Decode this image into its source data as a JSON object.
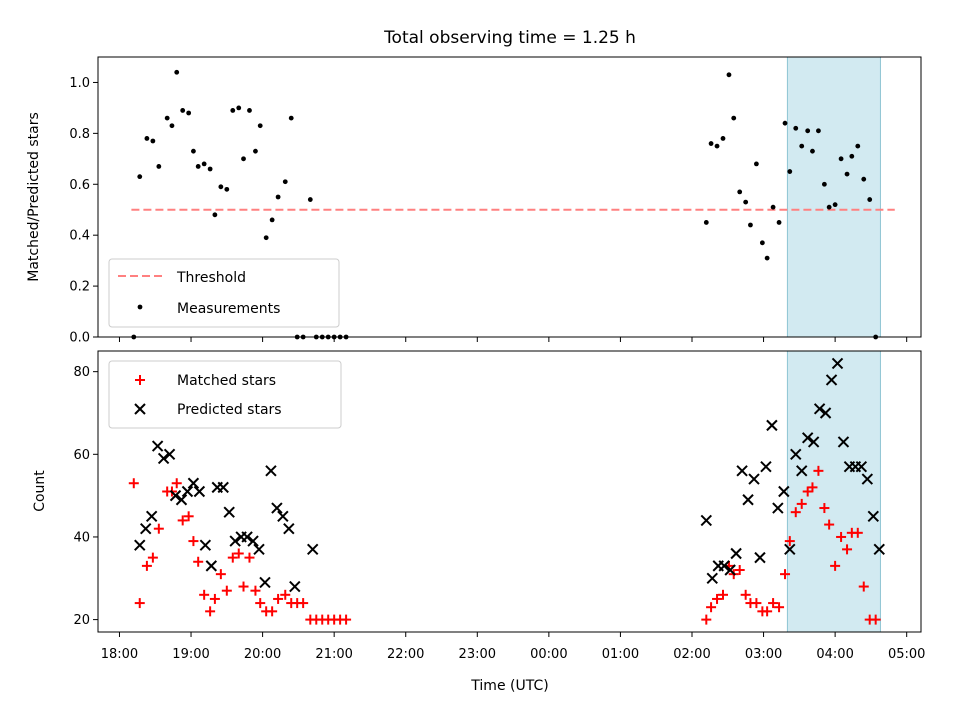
{
  "chart_data": [
    {
      "type": "scatter",
      "title": "Total observing time = 1.25 h",
      "xlabel": "",
      "ylabel": "Matched/Predicted stars",
      "ylim": [
        0,
        1.1
      ],
      "yticks": [
        "0.0",
        "0.2",
        "0.4",
        "0.6",
        "0.8",
        "1.0"
      ],
      "highlight_span_utc": [
        "03:20",
        "04:38"
      ],
      "highlight_color": "#add8e6",
      "legend_position": "lower left",
      "threshold": {
        "name": "Threshold",
        "value": 0.5,
        "x_range_utc": [
          "18:10",
          "04:50"
        ],
        "color": "#ff8080",
        "style": "dashed"
      },
      "series": [
        {
          "name": "Measurements",
          "marker": "dot",
          "color": "#000000",
          "points": [
            [
              "18:12",
              0.0
            ],
            [
              "18:17",
              0.63
            ],
            [
              "18:23",
              0.78
            ],
            [
              "18:28",
              0.77
            ],
            [
              "18:33",
              0.67
            ],
            [
              "18:40",
              0.86
            ],
            [
              "18:44",
              0.83
            ],
            [
              "18:48",
              1.04
            ],
            [
              "18:53",
              0.89
            ],
            [
              "18:58",
              0.88
            ],
            [
              "19:02",
              0.73
            ],
            [
              "19:06",
              0.67
            ],
            [
              "19:11",
              0.68
            ],
            [
              "19:16",
              0.66
            ],
            [
              "19:20",
              0.48
            ],
            [
              "19:25",
              0.59
            ],
            [
              "19:30",
              0.58
            ],
            [
              "19:35",
              0.89
            ],
            [
              "19:40",
              0.9
            ],
            [
              "19:44",
              0.7
            ],
            [
              "19:49",
              0.89
            ],
            [
              "19:54",
              0.73
            ],
            [
              "19:58",
              0.83
            ],
            [
              "20:03",
              0.39
            ],
            [
              "20:08",
              0.46
            ],
            [
              "20:13",
              0.55
            ],
            [
              "20:19",
              0.61
            ],
            [
              "20:24",
              0.86
            ],
            [
              "20:29",
              0.0
            ],
            [
              "20:34",
              0.0
            ],
            [
              "20:40",
              0.54
            ],
            [
              "20:45",
              0.0
            ],
            [
              "20:50",
              0.0
            ],
            [
              "20:55",
              0.0
            ],
            [
              "21:00",
              0.0
            ],
            [
              "21:05",
              0.0
            ],
            [
              "21:10",
              0.0
            ],
            [
              "02:12",
              0.45
            ],
            [
              "02:16",
              0.76
            ],
            [
              "02:21",
              0.75
            ],
            [
              "02:26",
              0.78
            ],
            [
              "02:31",
              1.03
            ],
            [
              "02:35",
              0.86
            ],
            [
              "02:40",
              0.57
            ],
            [
              "02:45",
              0.53
            ],
            [
              "02:49",
              0.44
            ],
            [
              "02:54",
              0.68
            ],
            [
              "02:59",
              0.37
            ],
            [
              "03:03",
              0.31
            ],
            [
              "03:08",
              0.51
            ],
            [
              "03:13",
              0.45
            ],
            [
              "03:18",
              0.84
            ],
            [
              "03:22",
              0.65
            ],
            [
              "03:27",
              0.82
            ],
            [
              "03:32",
              0.75
            ],
            [
              "03:37",
              0.81
            ],
            [
              "03:41",
              0.73
            ],
            [
              "03:46",
              0.81
            ],
            [
              "03:51",
              0.6
            ],
            [
              "03:55",
              0.51
            ],
            [
              "04:00",
              0.52
            ],
            [
              "04:05",
              0.7
            ],
            [
              "04:10",
              0.64
            ],
            [
              "04:14",
              0.71
            ],
            [
              "04:19",
              0.75
            ],
            [
              "04:24",
              0.62
            ],
            [
              "04:29",
              0.54
            ],
            [
              "04:34",
              0.0
            ]
          ]
        }
      ]
    },
    {
      "type": "scatter",
      "title": "",
      "xlabel": "Time (UTC)",
      "ylabel": "Count",
      "ylim": [
        17,
        85
      ],
      "yticks": [
        "20",
        "40",
        "60",
        "80"
      ],
      "xticks": [
        "18:00",
        "19:00",
        "20:00",
        "21:00",
        "22:00",
        "23:00",
        "00:00",
        "01:00",
        "02:00",
        "03:00",
        "04:00",
        "05:00"
      ],
      "xlim_utc": [
        "17:42",
        "05:12"
      ],
      "highlight_span_utc": [
        "03:20",
        "04:38"
      ],
      "highlight_color": "#add8e6",
      "legend_position": "upper left",
      "series": [
        {
          "name": "Matched stars",
          "marker": "plus",
          "color": "#ff0000",
          "points": [
            [
              "18:12",
              53
            ],
            [
              "18:17",
              24
            ],
            [
              "18:23",
              33
            ],
            [
              "18:28",
              35
            ],
            [
              "18:33",
              42
            ],
            [
              "18:40",
              51
            ],
            [
              "18:44",
              51
            ],
            [
              "18:48",
              53
            ],
            [
              "18:53",
              44
            ],
            [
              "18:58",
              45
            ],
            [
              "19:02",
              39
            ],
            [
              "19:06",
              34
            ],
            [
              "19:11",
              26
            ],
            [
              "19:16",
              22
            ],
            [
              "19:20",
              25
            ],
            [
              "19:25",
              31
            ],
            [
              "19:30",
              27
            ],
            [
              "19:35",
              35
            ],
            [
              "19:40",
              36
            ],
            [
              "19:44",
              28
            ],
            [
              "19:49",
              35
            ],
            [
              "19:54",
              27
            ],
            [
              "19:58",
              24
            ],
            [
              "20:03",
              22
            ],
            [
              "20:08",
              22
            ],
            [
              "20:13",
              25
            ],
            [
              "20:19",
              26
            ],
            [
              "20:24",
              24
            ],
            [
              "20:29",
              24
            ],
            [
              "20:34",
              24
            ],
            [
              "20:40",
              20
            ],
            [
              "20:45",
              20
            ],
            [
              "20:50",
              20
            ],
            [
              "20:55",
              20
            ],
            [
              "21:00",
              20
            ],
            [
              "21:05",
              20
            ],
            [
              "21:10",
              20
            ],
            [
              "02:12",
              20
            ],
            [
              "02:16",
              23
            ],
            [
              "02:21",
              25
            ],
            [
              "02:26",
              26
            ],
            [
              "02:31",
              33
            ],
            [
              "02:35",
              31
            ],
            [
              "02:40",
              32
            ],
            [
              "02:45",
              26
            ],
            [
              "02:49",
              24
            ],
            [
              "02:54",
              24
            ],
            [
              "02:59",
              22
            ],
            [
              "03:03",
              22
            ],
            [
              "03:08",
              24
            ],
            [
              "03:13",
              23
            ],
            [
              "03:18",
              31
            ],
            [
              "03:22",
              39
            ],
            [
              "03:27",
              46
            ],
            [
              "03:32",
              48
            ],
            [
              "03:37",
              51
            ],
            [
              "03:41",
              52
            ],
            [
              "03:46",
              56
            ],
            [
              "03:51",
              47
            ],
            [
              "03:55",
              43
            ],
            [
              "04:00",
              33
            ],
            [
              "04:05",
              40
            ],
            [
              "04:10",
              37
            ],
            [
              "04:14",
              41
            ],
            [
              "04:19",
              41
            ],
            [
              "04:24",
              28
            ],
            [
              "04:29",
              20
            ],
            [
              "04:34",
              20
            ]
          ]
        },
        {
          "name": "Predicted stars",
          "marker": "x",
          "color": "#000000",
          "points": [
            [
              "18:17",
              38
            ],
            [
              "18:22",
              42
            ],
            [
              "18:27",
              45
            ],
            [
              "18:32",
              62
            ],
            [
              "18:37",
              59
            ],
            [
              "18:42",
              60
            ],
            [
              "18:47",
              50
            ],
            [
              "18:52",
              49
            ],
            [
              "18:57",
              51
            ],
            [
              "19:02",
              53
            ],
            [
              "19:07",
              51
            ],
            [
              "19:12",
              38
            ],
            [
              "19:17",
              33
            ],
            [
              "19:22",
              52
            ],
            [
              "19:27",
              52
            ],
            [
              "19:32",
              46
            ],
            [
              "19:37",
              39
            ],
            [
              "19:42",
              40
            ],
            [
              "19:47",
              40
            ],
            [
              "19:52",
              39
            ],
            [
              "19:57",
              37
            ],
            [
              "20:02",
              29
            ],
            [
              "20:07",
              56
            ],
            [
              "20:12",
              47
            ],
            [
              "20:17",
              45
            ],
            [
              "20:22",
              42
            ],
            [
              "20:27",
              28
            ],
            [
              "20:42",
              37
            ],
            [
              "02:12",
              44
            ],
            [
              "02:17",
              30
            ],
            [
              "02:22",
              33
            ],
            [
              "02:27",
              33
            ],
            [
              "02:32",
              32
            ],
            [
              "02:37",
              36
            ],
            [
              "02:42",
              56
            ],
            [
              "02:47",
              49
            ],
            [
              "02:52",
              54
            ],
            [
              "02:57",
              35
            ],
            [
              "03:02",
              57
            ],
            [
              "03:07",
              67
            ],
            [
              "03:12",
              47
            ],
            [
              "03:17",
              51
            ],
            [
              "03:22",
              37
            ],
            [
              "03:27",
              60
            ],
            [
              "03:32",
              56
            ],
            [
              "03:37",
              64
            ],
            [
              "03:42",
              63
            ],
            [
              "03:47",
              71
            ],
            [
              "03:52",
              70
            ],
            [
              "03:57",
              78
            ],
            [
              "04:02",
              82
            ],
            [
              "04:07",
              63
            ],
            [
              "04:12",
              57
            ],
            [
              "04:17",
              57
            ],
            [
              "04:22",
              57
            ],
            [
              "04:27",
              54
            ],
            [
              "04:32",
              45
            ],
            [
              "04:37",
              37
            ]
          ]
        }
      ]
    }
  ]
}
